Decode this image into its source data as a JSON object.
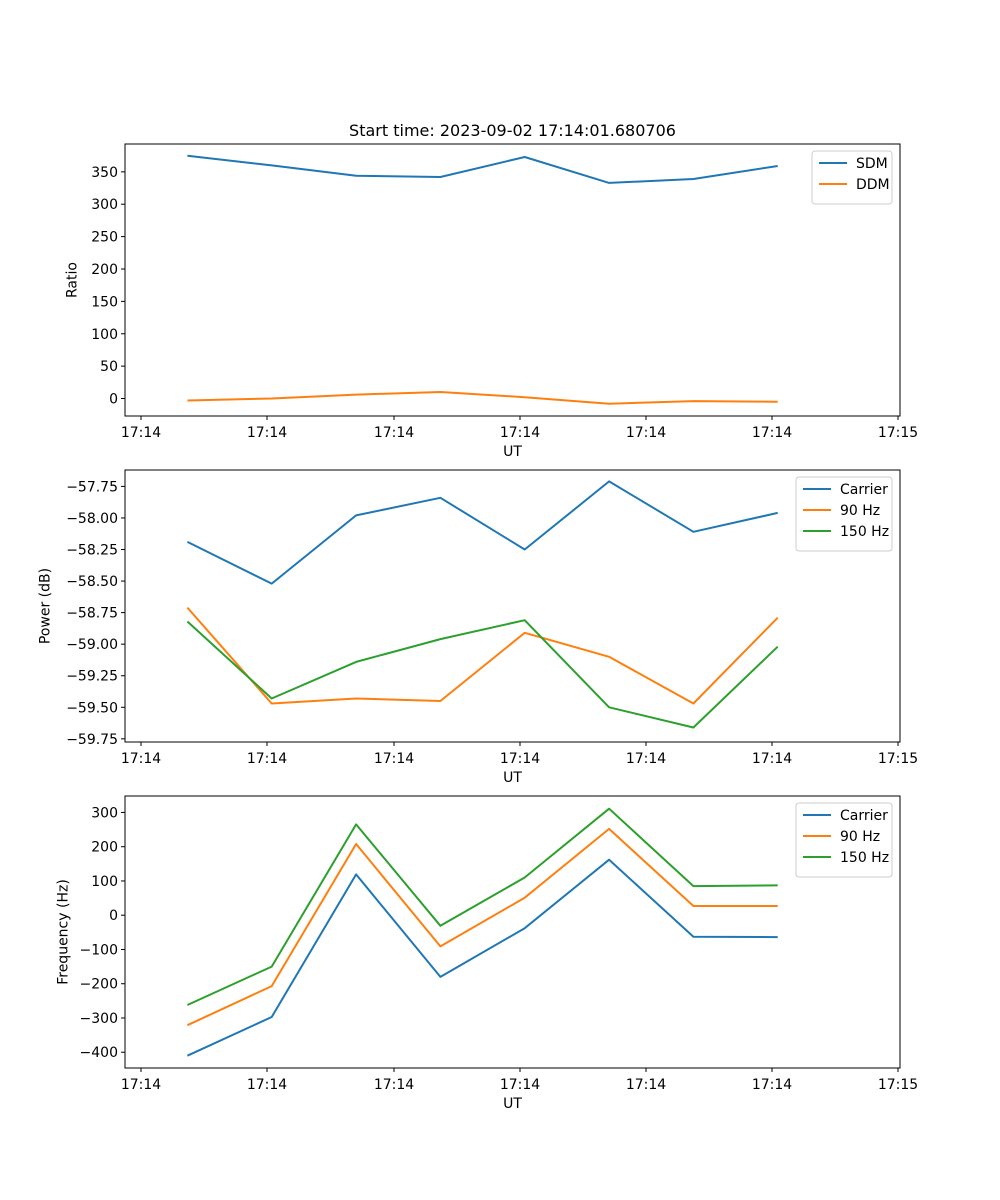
{
  "chart_data": [
    {
      "type": "line",
      "title": "Start time: 2023-09-02 17:14:01.680706",
      "xlabel": "UT",
      "ylabel": "Ratio",
      "x_tick_labels": [
        "17:14",
        "17:14",
        "17:14",
        "17:14",
        "17:14",
        "17:14",
        "17:15"
      ],
      "xlim": [
        -0.74,
        8.45
      ],
      "ylim": [
        -27,
        393
      ],
      "y_ticks": [
        0,
        50,
        100,
        150,
        200,
        250,
        300,
        350
      ],
      "y_tick_labels": [
        "0",
        "50",
        "100",
        "150",
        "200",
        "250",
        "300",
        "350"
      ],
      "x": [
        0,
        1,
        2,
        3,
        4,
        5,
        6,
        7
      ],
      "series": [
        {
          "name": "SDM",
          "color": "#1f77b4",
          "values": [
            375,
            360,
            344,
            342,
            373,
            333,
            339,
            359
          ]
        },
        {
          "name": "DDM",
          "color": "#ff7f0e",
          "values": [
            -3,
            0,
            6,
            10,
            2,
            -8,
            -4,
            -5
          ]
        }
      ],
      "legend": "top-right"
    },
    {
      "type": "line",
      "title": "",
      "xlabel": "UT",
      "ylabel": "Power (dB)",
      "x_tick_labels": [
        "17:14",
        "17:14",
        "17:14",
        "17:14",
        "17:14",
        "17:14",
        "17:15"
      ],
      "xlim": [
        -0.74,
        8.45
      ],
      "ylim": [
        -59.775,
        -57.62
      ],
      "y_ticks": [
        -59.75,
        -59.5,
        -59.25,
        -59.0,
        -58.75,
        -58.5,
        -58.25,
        -58.0,
        -57.75
      ],
      "y_tick_labels": [
        "−59.75",
        "−59.50",
        "−59.25",
        "−59.00",
        "−58.75",
        "−58.50",
        "−58.25",
        "−58.00",
        "−57.75"
      ],
      "x": [
        0,
        1,
        2,
        3,
        4,
        5,
        6,
        7
      ],
      "series": [
        {
          "name": "Carrier",
          "color": "#1f77b4",
          "values": [
            -58.19,
            -58.52,
            -57.98,
            -57.84,
            -58.25,
            -57.71,
            -58.11,
            -57.96
          ]
        },
        {
          "name": "90 Hz",
          "color": "#ff7f0e",
          "values": [
            -58.71,
            -59.47,
            -59.43,
            -59.45,
            -58.91,
            -59.1,
            -59.47,
            -58.79
          ]
        },
        {
          "name": "150 Hz",
          "color": "#2ca02c",
          "values": [
            -58.82,
            -59.43,
            -59.14,
            -58.96,
            -58.81,
            -59.5,
            -59.66,
            -59.02
          ]
        }
      ],
      "legend": "top-right"
    },
    {
      "type": "line",
      "title": "",
      "xlabel": "UT",
      "ylabel": "Frequency (Hz)",
      "x_tick_labels": [
        "17:14",
        "17:14",
        "17:14",
        "17:14",
        "17:14",
        "17:14",
        "17:15"
      ],
      "xlim": [
        -0.74,
        8.45
      ],
      "ylim": [
        -446,
        348
      ],
      "y_ticks": [
        -400,
        -300,
        -200,
        -100,
        0,
        100,
        200,
        300
      ],
      "y_tick_labels": [
        "−400",
        "−300",
        "−200",
        "−100",
        "0",
        "100",
        "200",
        "300"
      ],
      "x": [
        0,
        1,
        2,
        3,
        4,
        5,
        6,
        7
      ],
      "series": [
        {
          "name": "Carrier",
          "color": "#1f77b4",
          "values": [
            -410,
            -297,
            119,
            -180,
            -38,
            162,
            -63,
            -64
          ]
        },
        {
          "name": "90 Hz",
          "color": "#ff7f0e",
          "values": [
            -321,
            -207,
            208,
            -91,
            51,
            252,
            27,
            27
          ]
        },
        {
          "name": "150 Hz",
          "color": "#2ca02c",
          "values": [
            -262,
            -150,
            265,
            -31,
            110,
            311,
            85,
            87
          ]
        }
      ],
      "legend": "top-right"
    }
  ]
}
